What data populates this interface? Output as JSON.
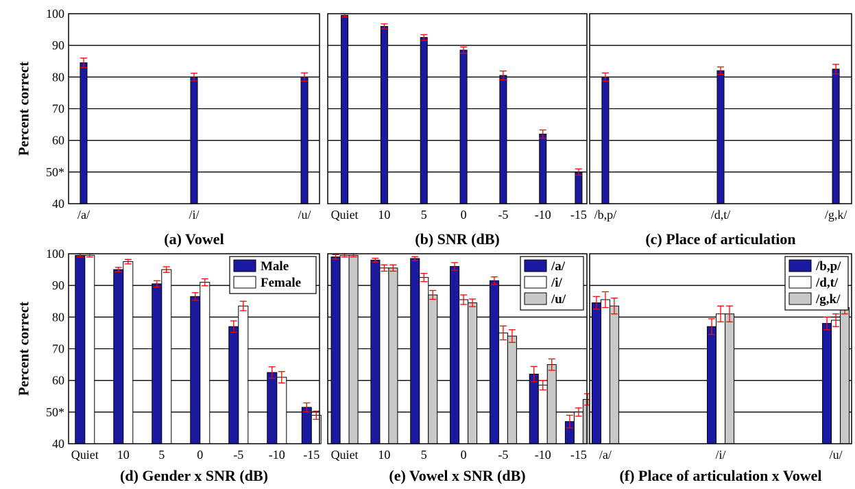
{
  "figure": {
    "ylabel": "Percent correct"
  },
  "chart_data": [
    {
      "id": "a",
      "type": "bar",
      "title": "(a) Vowel",
      "ylabel": "Percent correct",
      "ylim": [
        40,
        100
      ],
      "yticks": [
        {
          "v": 40,
          "label": "40"
        },
        {
          "v": 50,
          "label": "50*"
        },
        {
          "v": 60,
          "label": "60"
        },
        {
          "v": 70,
          "label": "70"
        },
        {
          "v": 80,
          "label": "80"
        },
        {
          "v": 90,
          "label": "90"
        },
        {
          "v": 100,
          "label": "100"
        }
      ],
      "grid": true,
      "categories": [
        "/a/",
        "/i/",
        "/u/"
      ],
      "series": [
        {
          "values": [
            84.5,
            80,
            80
          ],
          "errors": [
            1.5,
            1.2,
            1.3
          ],
          "color": "#1a1aa0"
        }
      ]
    },
    {
      "id": "b",
      "type": "bar",
      "title": "(b) SNR (dB)",
      "ylim": [
        40,
        100
      ],
      "grid": true,
      "categories": [
        "Quiet",
        "10",
        "5",
        "0",
        "-5",
        "-10",
        "-15"
      ],
      "series": [
        {
          "values": [
            99.5,
            96,
            92.5,
            88.5,
            80.5,
            62,
            50
          ],
          "errors": [
            0.5,
            0.8,
            0.9,
            1.0,
            1.4,
            1.3,
            1.0
          ],
          "color": "#1a1aa0"
        }
      ]
    },
    {
      "id": "c",
      "type": "bar",
      "title": "(c) Place of articulation",
      "ylim": [
        40,
        100
      ],
      "grid": true,
      "categories": [
        "/b,p/",
        "/d,t/",
        "/g,k/"
      ],
      "series": [
        {
          "values": [
            80,
            82,
            82.5
          ],
          "errors": [
            1.3,
            1.2,
            1.5
          ],
          "color": "#1a1aa0"
        }
      ]
    },
    {
      "id": "d",
      "type": "bar",
      "title": "(d) Gender x SNR (dB)",
      "ylabel": "Percent correct",
      "ylim": [
        40,
        100
      ],
      "yticks": [
        {
          "v": 40,
          "label": "40"
        },
        {
          "v": 50,
          "label": "50*"
        },
        {
          "v": 60,
          "label": "60"
        },
        {
          "v": 70,
          "label": "70"
        },
        {
          "v": 80,
          "label": "80"
        },
        {
          "v": 90,
          "label": "90"
        },
        {
          "v": 100,
          "label": "100"
        }
      ],
      "grid": true,
      "legend": "top-right",
      "categories": [
        "Quiet",
        "10",
        "5",
        "0",
        "-5",
        "-10",
        "-15"
      ],
      "series": [
        {
          "name": "Male",
          "values": [
            99.5,
            95,
            90.5,
            86.5,
            77,
            62.5,
            51.5
          ],
          "errors": [
            0.5,
            0.7,
            1.0,
            1.2,
            1.8,
            1.8,
            1.4
          ],
          "color": "#1a1aa0"
        },
        {
          "name": "Female",
          "values": [
            99.5,
            97.5,
            95,
            91,
            83.5,
            61,
            49
          ],
          "errors": [
            0.5,
            0.7,
            0.9,
            1.1,
            1.5,
            1.8,
            1.3
          ],
          "color": "#ffffff"
        }
      ]
    },
    {
      "id": "e",
      "type": "bar",
      "title": "(e) Vowel x SNR (dB)",
      "ylim": [
        40,
        100
      ],
      "grid": true,
      "legend": "top-right",
      "categories": [
        "Quiet",
        "10",
        "5",
        "0",
        "-5",
        "-10",
        "-15"
      ],
      "series": [
        {
          "name": "/a/",
          "values": [
            99,
            98,
            98.5,
            96,
            91.5,
            62,
            47
          ],
          "errors": [
            0.7,
            0.6,
            0.6,
            1.2,
            1.2,
            2.4,
            2.0
          ],
          "color": "#1a1aa0"
        },
        {
          "name": "/i/",
          "values": [
            99.5,
            95.5,
            92.5,
            85.5,
            75,
            58.5,
            50
          ],
          "errors": [
            0.5,
            1.0,
            1.3,
            1.5,
            2.2,
            1.5,
            1.3
          ],
          "color": "#ffffff"
        },
        {
          "name": "/u/",
          "values": [
            99.5,
            95.5,
            87,
            84.5,
            74,
            65,
            54
          ],
          "errors": [
            0.5,
            1.0,
            1.4,
            1.2,
            2.0,
            1.8,
            1.8
          ],
          "color": "#c8c8c8"
        }
      ]
    },
    {
      "id": "f",
      "type": "bar",
      "title": "(f) Place of articulation x Vowel",
      "ylim": [
        40,
        100
      ],
      "grid": true,
      "legend": "top-right",
      "categories": [
        "/a/",
        "/i/",
        "/u/"
      ],
      "series": [
        {
          "name": "/b,p/",
          "values": [
            84.5,
            77,
            78
          ],
          "errors": [
            2.0,
            2.5,
            2.0
          ],
          "color": "#1a1aa0"
        },
        {
          "name": "/d,t/",
          "values": [
            85.5,
            81,
            79
          ],
          "errors": [
            2.5,
            2.5,
            2.0
          ],
          "color": "#ffffff"
        },
        {
          "name": "/g,k/",
          "values": [
            83.5,
            81,
            83
          ],
          "errors": [
            2.5,
            2.5,
            2.0
          ],
          "color": "#c8c8c8"
        }
      ]
    }
  ]
}
